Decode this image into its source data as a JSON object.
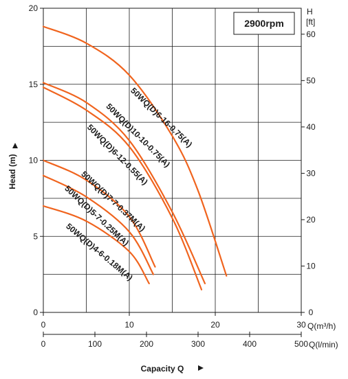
{
  "chart_data": {
    "type": "line",
    "title": "",
    "speed_label": "2900rpm",
    "ylabel": "Head (m)",
    "xlabel": "Capacity Q",
    "y_left": {
      "ticks": [
        "0",
        "5",
        "10",
        "15",
        "20"
      ],
      "range": [
        0,
        20
      ]
    },
    "y_right": {
      "unit_top": "H",
      "unit_bottom": "[ft]",
      "ticks": [
        "0",
        "10",
        "20",
        "30",
        "40",
        "50",
        "60"
      ],
      "range": [
        0,
        65.6
      ]
    },
    "x_top": {
      "ticks": [
        "0",
        "10",
        "20",
        "30"
      ],
      "unit": "Q(m³/h)",
      "range": [
        0,
        30
      ]
    },
    "x_bottom": {
      "ticks": [
        "0",
        "100",
        "200",
        "300",
        "400",
        "500"
      ],
      "unit": "Q(l/min)",
      "range": [
        0,
        500
      ]
    },
    "grid": true,
    "series": [
      {
        "name": "50WQ(D)6-16-0.75(A)",
        "x": [
          0,
          5,
          10,
          15,
          18,
          21.3
        ],
        "y": [
          18.8,
          17.7,
          15.6,
          11.6,
          8.0,
          2.4
        ]
      },
      {
        "name": "50WQ(D)10-10-0.75(A)",
        "x": [
          0,
          5,
          10,
          15,
          18.8
        ],
        "y": [
          15.1,
          13.8,
          11.3,
          6.6,
          1.9
        ]
      },
      {
        "name": "50WQ(D)6-12-0.55(A)",
        "x": [
          0,
          5,
          10,
          15,
          18.4
        ],
        "y": [
          14.8,
          13.3,
          10.9,
          6.2,
          1.5
        ]
      },
      {
        "name": "50WQ(D)7-7-0.37M(A)",
        "x": [
          0,
          5,
          10,
          13
        ],
        "y": [
          10.0,
          8.7,
          6.3,
          3.0
        ]
      },
      {
        "name": "50WQ(D)5-7-0.25M(A)",
        "x": [
          0,
          5,
          10,
          12.8
        ],
        "y": [
          9.0,
          7.6,
          5.3,
          2.5
        ]
      },
      {
        "name": "50WQ(D)4-6-0.18M(A)",
        "x": [
          0,
          5,
          10,
          12.3
        ],
        "y": [
          7.0,
          6.0,
          4.0,
          1.9
        ]
      }
    ],
    "colors": {
      "curve": "#f0641e",
      "grid": "#1a1a1a",
      "frame": "#1a1a1a"
    }
  }
}
